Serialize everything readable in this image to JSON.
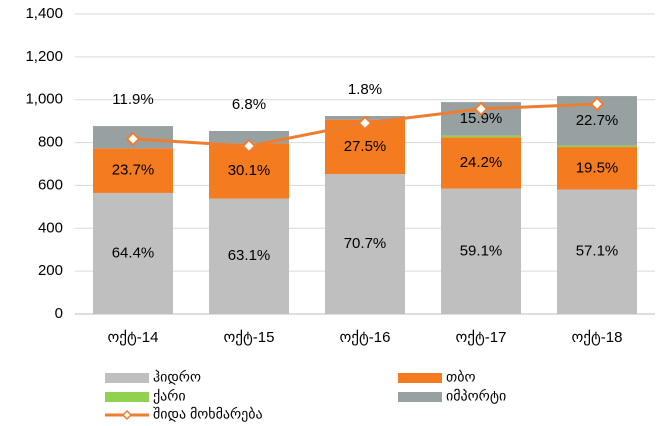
{
  "chart_data": {
    "type": "bar",
    "categories": [
      "ოქტ-14",
      "ოქტ-15",
      "ოქტ-16",
      "ოქტ-17",
      "ოქტ-18"
    ],
    "series": [
      {
        "name": "ჰიდრო",
        "color": "#bfbfbf",
        "values": [
          565,
          539,
          653,
          585,
          581
        ],
        "value_labels": [
          "64.4%",
          "63.1%",
          "70.7%",
          "59.1%",
          "57.1%"
        ]
      },
      {
        "name": "თბო",
        "color": "#f47b20",
        "values": [
          208,
          257,
          254,
          239,
          198
        ],
        "value_labels": [
          "23.7%",
          "30.1%",
          "27.5%",
          "24.2%",
          "19.5%"
        ]
      },
      {
        "name": "ქარი",
        "color": "#92d050",
        "values": [
          0,
          0,
          0,
          8,
          7
        ]
      },
      {
        "name": "იმპორტი",
        "color": "#97a1a1",
        "values": [
          104,
          58,
          17,
          157,
          231
        ],
        "value_labels": [
          "11.9%",
          "6.8%",
          "1.8%",
          "15.9%",
          "22.7%"
        ]
      },
      {
        "name": "შიდა მოხმარება",
        "type": "line",
        "color": "#ed7d31",
        "values": [
          817,
          784,
          891,
          957,
          980
        ]
      }
    ],
    "stacked": true,
    "ylim": [
      0,
      1400
    ],
    "yticks": [
      0,
      {
        "value": 200,
        "label": "200"
      },
      {
        "value": 400,
        "label": "400"
      },
      {
        "value": 600,
        "label": "600"
      },
      {
        "value": 800,
        "label": "800"
      },
      {
        "value": 1000,
        "label": "1,000"
      },
      {
        "value": 1200,
        "label": "1,200"
      },
      {
        "value": 1400,
        "label": "1,400"
      }
    ],
    "grid": true
  }
}
